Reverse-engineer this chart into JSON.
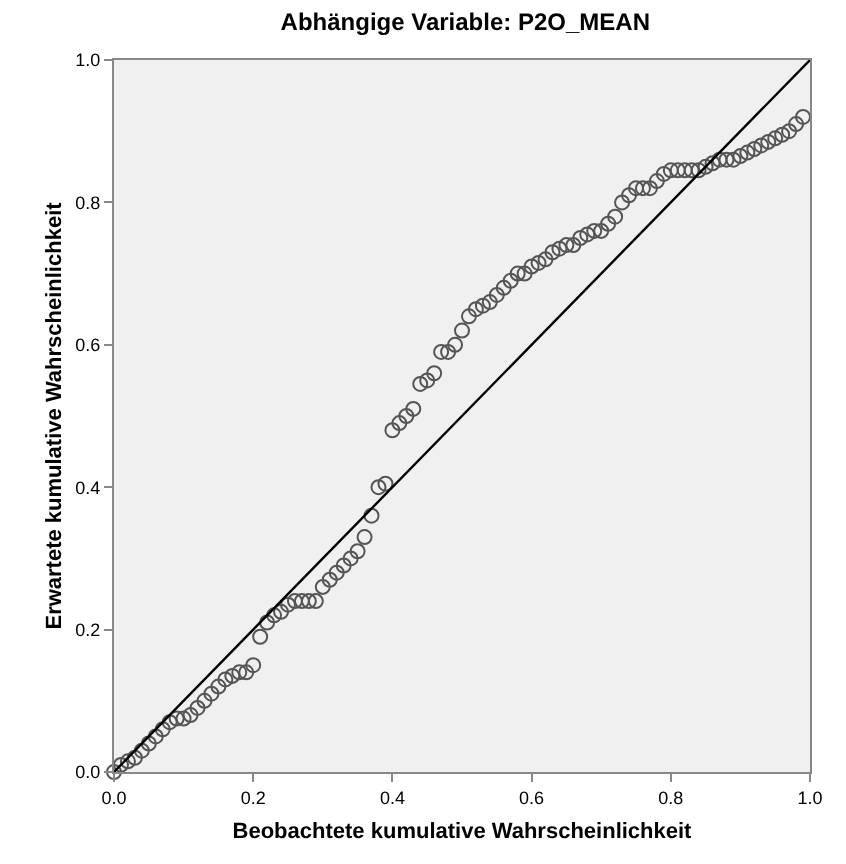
{
  "chart_data": {
    "type": "scatter",
    "title": "Abhängige Variable: P2O_MEAN",
    "xlabel": "Beobachtete kumulative Wahrscheinlichkeit",
    "ylabel": "Erwartete kumulative Wahrscheinlichkeit",
    "grid": false,
    "xlim": [
      0,
      1
    ],
    "ylim": [
      0,
      1
    ],
    "xticks": [
      {
        "value": 0,
        "label": "0.0"
      },
      {
        "value": 0.2,
        "label": "0.2"
      },
      {
        "value": 0.4,
        "label": "0.4"
      },
      {
        "value": 0.6,
        "label": "0.6"
      },
      {
        "value": 0.8,
        "label": "0.8"
      },
      {
        "value": 1,
        "label": "1.0"
      }
    ],
    "yticks": [
      {
        "value": 0,
        "label": "0.0"
      },
      {
        "value": 0.2,
        "label": "0.2"
      },
      {
        "value": 0.4,
        "label": "0.4"
      },
      {
        "value": 0.6,
        "label": "0.6"
      },
      {
        "value": 0.8,
        "label": "0.8"
      },
      {
        "value": 1,
        "label": "1.0"
      }
    ],
    "series": [
      {
        "marker": "circle",
        "color": "#555555",
        "x": [
          0.0,
          0.01,
          0.02,
          0.03,
          0.04,
          0.05,
          0.06,
          0.07,
          0.08,
          0.09,
          0.1,
          0.11,
          0.12,
          0.13,
          0.14,
          0.15,
          0.16,
          0.17,
          0.18,
          0.19,
          0.2,
          0.21,
          0.22,
          0.23,
          0.24,
          0.25,
          0.26,
          0.27,
          0.28,
          0.29,
          0.3,
          0.31,
          0.32,
          0.33,
          0.34,
          0.35,
          0.36,
          0.37,
          0.38,
          0.39,
          0.4,
          0.41,
          0.42,
          0.43,
          0.44,
          0.45,
          0.46,
          0.47,
          0.48,
          0.49,
          0.5,
          0.51,
          0.52,
          0.53,
          0.54,
          0.55,
          0.56,
          0.57,
          0.58,
          0.59,
          0.6,
          0.61,
          0.62,
          0.63,
          0.64,
          0.65,
          0.66,
          0.67,
          0.68,
          0.69,
          0.7,
          0.71,
          0.72,
          0.73,
          0.74,
          0.75,
          0.76,
          0.77,
          0.78,
          0.79,
          0.8,
          0.81,
          0.82,
          0.83,
          0.84,
          0.85,
          0.86,
          0.87,
          0.88,
          0.89,
          0.9,
          0.91,
          0.92,
          0.93,
          0.94,
          0.95,
          0.96,
          0.97,
          0.98,
          0.99
        ],
        "values": [
          0.0,
          0.01,
          0.015,
          0.02,
          0.03,
          0.04,
          0.05,
          0.06,
          0.07,
          0.075,
          0.075,
          0.08,
          0.09,
          0.1,
          0.11,
          0.12,
          0.13,
          0.135,
          0.14,
          0.14,
          0.15,
          0.19,
          0.21,
          0.22,
          0.225,
          0.235,
          0.24,
          0.24,
          0.24,
          0.24,
          0.26,
          0.27,
          0.28,
          0.29,
          0.3,
          0.31,
          0.33,
          0.36,
          0.4,
          0.405,
          0.48,
          0.49,
          0.5,
          0.51,
          0.545,
          0.55,
          0.56,
          0.59,
          0.59,
          0.6,
          0.62,
          0.64,
          0.65,
          0.655,
          0.66,
          0.67,
          0.68,
          0.69,
          0.7,
          0.7,
          0.71,
          0.715,
          0.72,
          0.73,
          0.735,
          0.74,
          0.74,
          0.75,
          0.755,
          0.76,
          0.76,
          0.77,
          0.78,
          0.8,
          0.81,
          0.82,
          0.82,
          0.82,
          0.83,
          0.84,
          0.845,
          0.845,
          0.845,
          0.845,
          0.845,
          0.85,
          0.855,
          0.86,
          0.86,
          0.86,
          0.865,
          0.87,
          0.875,
          0.88,
          0.885,
          0.89,
          0.895,
          0.9,
          0.91,
          0.92
        ]
      },
      {
        "type": "line",
        "marker": "none",
        "color": "#000000",
        "x": [
          0,
          1
        ],
        "values": [
          0,
          1
        ]
      }
    ]
  }
}
